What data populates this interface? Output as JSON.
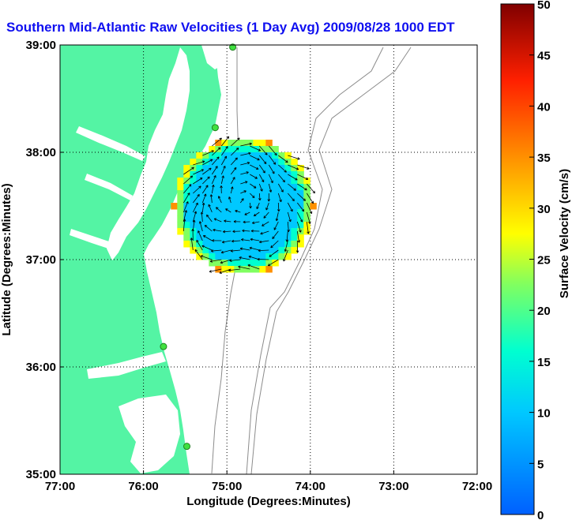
{
  "chart_data": {
    "type": "heatmap",
    "title": "Southern Mid-Atlantic Raw Velocities (1 Day Avg) 2009/08/28 1000 EDT",
    "xlabel": "Longitude (Degrees:Minutes)",
    "ylabel": "Latitude (Degrees:Minutes)",
    "xlim": [
      -77,
      -72
    ],
    "ylim": [
      35,
      39
    ],
    "x_ticks": [
      {
        "value": -77,
        "label": "77:00"
      },
      {
        "value": -76,
        "label": "76:00"
      },
      {
        "value": -75,
        "label": "75:00"
      },
      {
        "value": -74,
        "label": "74:00"
      },
      {
        "value": -73,
        "label": "73:00"
      },
      {
        "value": -72,
        "label": "72:00"
      }
    ],
    "y_ticks": [
      {
        "value": 39,
        "label": "39:00"
      },
      {
        "value": 38,
        "label": "38:00"
      },
      {
        "value": 37,
        "label": "37:00"
      },
      {
        "value": 36,
        "label": "36:00"
      },
      {
        "value": 35,
        "label": "35:00"
      }
    ],
    "grid": true,
    "colorbar": {
      "label": "Surface Velocity (cm/s)",
      "min": 0,
      "max": 50,
      "ticks": [
        "0",
        "5",
        "10",
        "15",
        "20",
        "25",
        "30",
        "35",
        "40",
        "45",
        "50"
      ]
    },
    "coverage_center": [
      -74.8,
      37.5
    ],
    "stations": [
      [
        -74.93,
        38.98
      ],
      [
        -75.14,
        38.23
      ],
      [
        -75.76,
        36.19
      ],
      [
        -75.48,
        35.26
      ]
    ]
  },
  "colors": {
    "land": "#54f4a4",
    "water": "#ffffff",
    "title": "#1010f0",
    "bathymetry": "#8c8c8c",
    "station": "#40e040",
    "arrow": "#000000"
  }
}
